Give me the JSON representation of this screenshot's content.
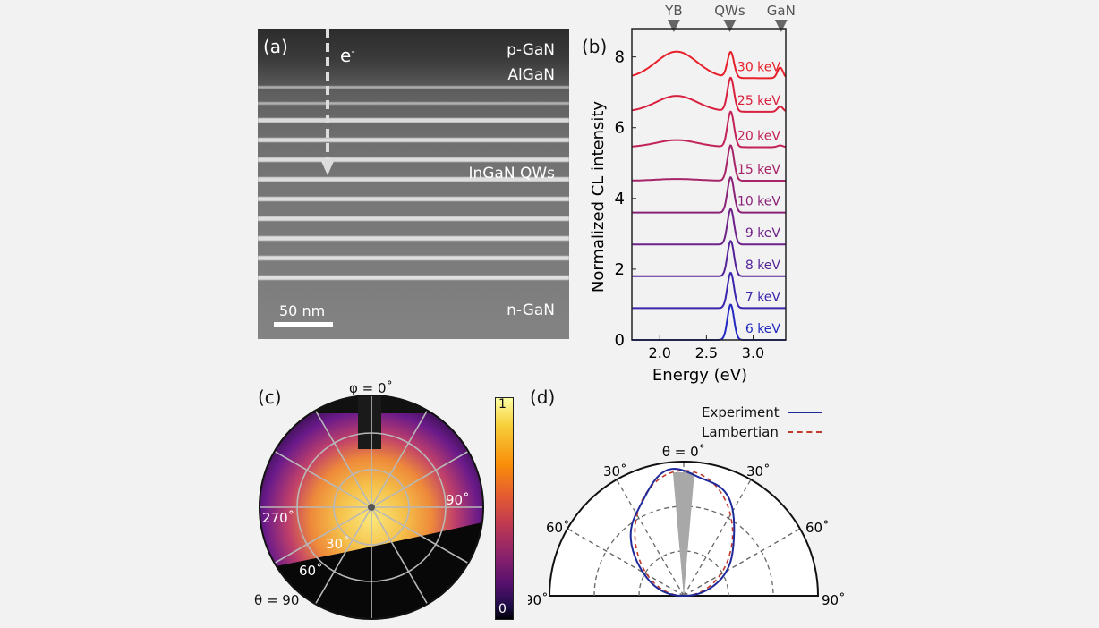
{
  "panel_a": {
    "label": "(a)",
    "electron": "e",
    "electron_sup": "-",
    "layers": [
      "p-GaN",
      "AlGaN",
      "InGaN QWs",
      "n-GaN"
    ],
    "scalebar": "50 nm"
  },
  "panel_b": {
    "label": "(b)",
    "top_markers": [
      "YB",
      "QWs",
      "GaN"
    ],
    "xlabel": "Energy (eV)",
    "ylabel": "Normalized CL intensity",
    "xticks": [
      "2.0",
      "2.5",
      "3.0"
    ],
    "yticks": [
      "0",
      "2",
      "4",
      "6",
      "8"
    ],
    "series_labels": [
      "30 keV",
      "25 keV",
      "20 keV",
      "15 keV",
      "10 keV",
      "9 keV",
      "8 keV",
      "7 keV",
      "6 keV"
    ]
  },
  "panel_c": {
    "label": "(c)",
    "phi_label": "φ = 0˚",
    "theta_label": "θ = 90˚",
    "angle_labels": [
      "90˚",
      "270˚",
      "30˚",
      "60˚"
    ],
    "colorbar_ticks": [
      "1",
      "0"
    ]
  },
  "panel_d": {
    "label": "(d)",
    "legend": [
      "Experiment",
      "Lambertian"
    ],
    "theta0": "θ = 0˚",
    "angle_labels": [
      "30˚",
      "30˚",
      "60˚",
      "60˚",
      "90˚",
      "90˚"
    ]
  },
  "chart_data": [
    {
      "type": "line",
      "panel": "(b)",
      "xlabel": "Energy (eV)",
      "ylabel": "Normalized CL intensity",
      "xlim": [
        1.7,
        3.35
      ],
      "ylim": [
        0,
        8.8
      ],
      "x_markers": {
        "YB": 2.15,
        "QWs": 2.75,
        "GaN": 3.3
      },
      "series": [
        {
          "name": "30 keV",
          "offset": 7.4,
          "color": "#e8202a",
          "yb": 0.75,
          "qw": 0.72,
          "gan": 0.3
        },
        {
          "name": "25 keV",
          "offset": 6.45,
          "color": "#d8203e",
          "yb": 0.45,
          "qw": 0.95,
          "gan": 0.15
        },
        {
          "name": "20 keV",
          "offset": 5.45,
          "color": "#c22256",
          "yb": 0.2,
          "qw": 1.0,
          "gan": 0.05
        },
        {
          "name": "15 keV",
          "offset": 4.5,
          "color": "#a62468",
          "yb": 0.05,
          "qw": 1.0,
          "gan": 0.0
        },
        {
          "name": "10 keV",
          "offset": 3.6,
          "color": "#8a2278",
          "yb": 0.0,
          "qw": 1.0,
          "gan": 0.0
        },
        {
          "name": "9 keV",
          "offset": 2.7,
          "color": "#6e2288",
          "yb": 0.0,
          "qw": 1.0,
          "gan": 0.0
        },
        {
          "name": "8 keV",
          "offset": 1.8,
          "color": "#542498",
          "yb": 0.0,
          "qw": 1.0,
          "gan": 0.0
        },
        {
          "name": "7 keV",
          "offset": 0.9,
          "color": "#3a26ac",
          "yb": 0.0,
          "qw": 1.0,
          "gan": 0.0
        },
        {
          "name": "6 keV",
          "offset": 0.0,
          "color": "#2228c0",
          "yb": 0.0,
          "qw": 1.0,
          "gan": 0.0
        }
      ]
    },
    {
      "type": "line",
      "panel": "(d)",
      "coordinate": "polar",
      "theta_range_deg": [
        -90,
        90
      ],
      "series": [
        {
          "name": "Experiment",
          "color": "#1f2a9a",
          "style": "solid"
        },
        {
          "name": "Lambertian",
          "color": "#c0392b",
          "style": "dashed"
        }
      ]
    }
  ]
}
